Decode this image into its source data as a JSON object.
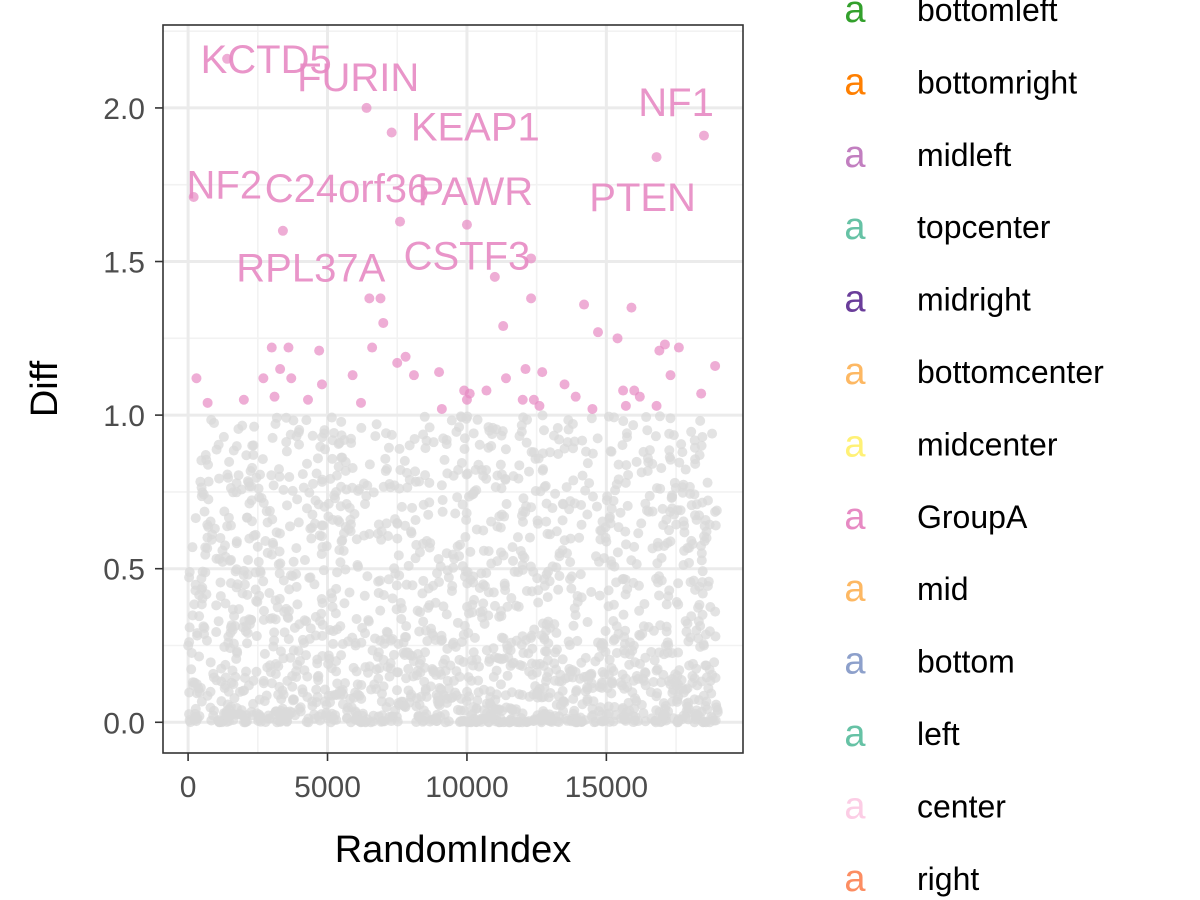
{
  "chart_data": {
    "type": "scatter",
    "xlabel": "RandomIndex",
    "ylabel": "Diff",
    "xlim": [
      -900,
      19900
    ],
    "ylim": [
      -0.1,
      2.27
    ],
    "x_ticks": [
      {
        "value": 0,
        "label": "0"
      },
      {
        "value": 5000,
        "label": "5000"
      },
      {
        "value": 10000,
        "label": "10000"
      },
      {
        "value": 15000,
        "label": "15000"
      }
    ],
    "y_ticks": [
      {
        "value": 0,
        "label": "0.0"
      },
      {
        "value": 0.5,
        "label": "0.5"
      },
      {
        "value": 1.0,
        "label": "1.0"
      },
      {
        "value": 1.5,
        "label": "1.5"
      },
      {
        "value": 2.0,
        "label": "2.0"
      }
    ],
    "grid": true,
    "legend_position": "right",
    "background_points": {
      "count": 1800,
      "x_range": [
        0,
        19000
      ],
      "y_range": [
        0,
        1.0
      ],
      "color": "#d9d9d9",
      "description_note": ""
    },
    "highlight_color": "#e78ac3",
    "highlight_points": [
      {
        "x": 300,
        "y": 1.12
      },
      {
        "x": 700,
        "y": 1.04
      },
      {
        "x": 2000,
        "y": 1.05
      },
      {
        "x": 2700,
        "y": 1.12
      },
      {
        "x": 3000,
        "y": 1.22
      },
      {
        "x": 3100,
        "y": 1.06
      },
      {
        "x": 3300,
        "y": 1.15
      },
      {
        "x": 3600,
        "y": 1.22
      },
      {
        "x": 3700,
        "y": 1.12
      },
      {
        "x": 4300,
        "y": 1.05
      },
      {
        "x": 4700,
        "y": 1.21
      },
      {
        "x": 4800,
        "y": 1.1
      },
      {
        "x": 5900,
        "y": 1.13
      },
      {
        "x": 6200,
        "y": 1.04
      },
      {
        "x": 6500,
        "y": 1.38
      },
      {
        "x": 6600,
        "y": 1.22
      },
      {
        "x": 6900,
        "y": 1.38
      },
      {
        "x": 7000,
        "y": 1.3
      },
      {
        "x": 7500,
        "y": 1.17
      },
      {
        "x": 7800,
        "y": 1.19
      },
      {
        "x": 8100,
        "y": 1.13
      },
      {
        "x": 9000,
        "y": 1.14
      },
      {
        "x": 9100,
        "y": 1.02
      },
      {
        "x": 9900,
        "y": 1.08
      },
      {
        "x": 10000,
        "y": 1.05
      },
      {
        "x": 10100,
        "y": 1.07
      },
      {
        "x": 10700,
        "y": 1.08
      },
      {
        "x": 11000,
        "y": 1.45
      },
      {
        "x": 11300,
        "y": 1.29
      },
      {
        "x": 11400,
        "y": 1.12
      },
      {
        "x": 12000,
        "y": 1.05
      },
      {
        "x": 12100,
        "y": 1.15
      },
      {
        "x": 12300,
        "y": 1.38
      },
      {
        "x": 12400,
        "y": 1.05
      },
      {
        "x": 12600,
        "y": 1.03
      },
      {
        "x": 12700,
        "y": 1.14
      },
      {
        "x": 13500,
        "y": 1.1
      },
      {
        "x": 13900,
        "y": 1.06
      },
      {
        "x": 14200,
        "y": 1.36
      },
      {
        "x": 14500,
        "y": 1.02
      },
      {
        "x": 14700,
        "y": 1.27
      },
      {
        "x": 15400,
        "y": 1.25
      },
      {
        "x": 15600,
        "y": 1.08
      },
      {
        "x": 15700,
        "y": 1.03
      },
      {
        "x": 15900,
        "y": 1.35
      },
      {
        "x": 16000,
        "y": 1.08
      },
      {
        "x": 16200,
        "y": 1.06
      },
      {
        "x": 16800,
        "y": 1.03
      },
      {
        "x": 16900,
        "y": 1.21
      },
      {
        "x": 17100,
        "y": 1.23
      },
      {
        "x": 17300,
        "y": 1.13
      },
      {
        "x": 17600,
        "y": 1.22
      },
      {
        "x": 18400,
        "y": 1.07
      },
      {
        "x": 18900,
        "y": 1.16
      }
    ],
    "labeled_points": [
      {
        "label": "KCTD5",
        "x": 1400,
        "y": 2.16,
        "label_x": 2800,
        "label_y": 2.16
      },
      {
        "label": "FURIN",
        "x": 6400,
        "y": 2.0,
        "label_x": 6100,
        "label_y": 2.1
      },
      {
        "label": "KEAP1",
        "x": 7300,
        "y": 1.92,
        "label_x": 10300,
        "label_y": 1.94
      },
      {
        "label": "NF1",
        "x": 18500,
        "y": 1.91,
        "label_x": 17500,
        "label_y": 2.02
      },
      {
        "label": "NF2",
        "x": 200,
        "y": 1.71,
        "label_x": 1300,
        "label_y": 1.75
      },
      {
        "label": "C24orf36",
        "x": 7600,
        "y": 1.63,
        "label_x": 5700,
        "label_y": 1.74
      },
      {
        "label": "PAWR",
        "x": 10000,
        "y": 1.62,
        "label_x": 10300,
        "label_y": 1.73
      },
      {
        "label": "PTEN",
        "x": 16800,
        "y": 1.84,
        "label_x": 16300,
        "label_y": 1.71
      },
      {
        "label": "RPL37A",
        "x": 3400,
        "y": 1.6,
        "label_x": 4400,
        "label_y": 1.48
      },
      {
        "label": "CSTF3",
        "x": 12300,
        "y": 1.51,
        "label_x": 10000,
        "label_y": 1.52
      }
    ],
    "legend": [
      {
        "label": "bottomleft",
        "color": "#33a02c"
      },
      {
        "label": "bottomright",
        "color": "#ff7f00"
      },
      {
        "label": "midleft",
        "color": "#c27fc0"
      },
      {
        "label": "topcenter",
        "color": "#66c2a5"
      },
      {
        "label": "midright",
        "color": "#6a3d9a"
      },
      {
        "label": "bottomcenter",
        "color": "#fdb863"
      },
      {
        "label": "midcenter",
        "color": "#fff176"
      },
      {
        "label": "GroupA",
        "color": "#e78ac3"
      },
      {
        "label": "mid",
        "color": "#fdb863"
      },
      {
        "label": "bottom",
        "color": "#8da0cb"
      },
      {
        "label": "left",
        "color": "#66c2a5"
      },
      {
        "label": "center",
        "color": "#fccde5"
      },
      {
        "label": "right",
        "color": "#fc8d62"
      }
    ],
    "legend_key_glyph": "a"
  }
}
